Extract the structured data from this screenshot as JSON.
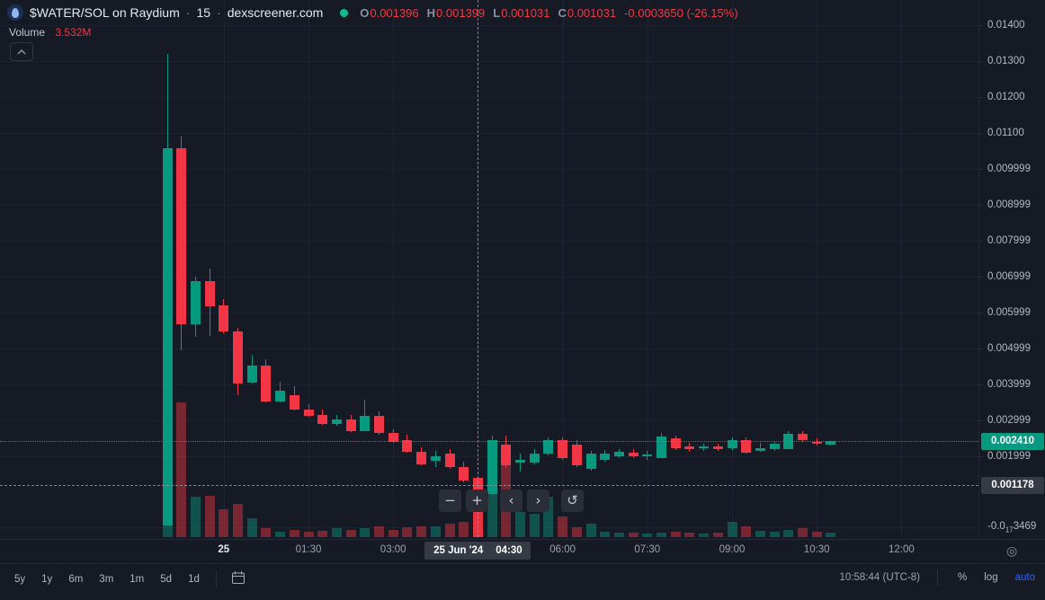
{
  "header": {
    "symbol": "$WATER/SOL on Raydium",
    "separator": "·",
    "interval": "15",
    "source": "dexscreener.com",
    "ohlc": {
      "o_label": "O",
      "o_value": "0.001396",
      "h_label": "H",
      "h_value": "0.001399",
      "l_label": "L",
      "l_value": "0.001031",
      "c_label": "C",
      "c_value": "0.001031",
      "change": "-0.0003650 (-26.15%)"
    },
    "volume_label": "Volume",
    "volume_value": "3.532M"
  },
  "chart_data": {
    "type": "candlestick+volume",
    "interval_minutes": 15,
    "hovered_candle_index": 22,
    "last_price": 0.00241,
    "crosshair_price": 0.001178,
    "ylim": [
      -0.000267,
      0.014706
    ],
    "grid": true,
    "candles": [
      [
        5.9e-05,
        0.013204,
        5.9e-05,
        0.010575,
        4.24
      ],
      [
        0.010575,
        0.0109,
        0.004941,
        0.005667,
        8.15
      ],
      [
        0.005667,
        0.006994,
        0.005317,
        0.006869,
        2.44
      ],
      [
        0.006869,
        0.007219,
        0.005342,
        0.006168,
        2.5
      ],
      [
        0.006193,
        0.006368,
        0.005417,
        0.005467,
        1.68
      ],
      [
        0.005467,
        0.005567,
        0.003689,
        0.004015,
        2.01
      ],
      [
        0.00404,
        0.004816,
        0.004015,
        0.004515,
        1.14
      ],
      [
        0.004515,
        0.004691,
        0.003489,
        0.003514,
        0.54
      ],
      [
        0.003514,
        0.004065,
        0.003489,
        0.003814,
        0.33
      ],
      [
        0.003689,
        0.003939,
        0.003263,
        0.003288,
        0.43
      ],
      [
        0.003288,
        0.003439,
        0.003088,
        0.003113,
        0.33
      ],
      [
        0.003138,
        0.003288,
        0.002863,
        0.002888,
        0.38
      ],
      [
        0.002888,
        0.003138,
        0.002838,
        0.003013,
        0.54
      ],
      [
        0.003013,
        0.003138,
        0.002663,
        0.002688,
        0.43
      ],
      [
        0.002688,
        0.003564,
        0.002688,
        0.003113,
        0.54
      ],
      [
        0.003113,
        0.003238,
        0.002587,
        0.002637,
        0.65
      ],
      [
        0.002637,
        0.002738,
        0.002362,
        0.002387,
        0.43
      ],
      [
        0.002437,
        0.002587,
        0.002087,
        0.002112,
        0.6
      ],
      [
        0.002112,
        0.002237,
        0.001737,
        0.001762,
        0.65
      ],
      [
        0.001862,
        0.002137,
        0.001687,
        0.001987,
        0.65
      ],
      [
        0.002062,
        0.002187,
        0.001637,
        0.001687,
        0.81
      ],
      [
        0.001687,
        0.001837,
        0.001262,
        0.001312,
        0.92
      ],
      [
        0.001396,
        0.001399,
        0.001031,
        0.001031,
        3.532
      ],
      [
        0.000936,
        0.002562,
        0.000911,
        0.002437,
        4.13
      ],
      [
        0.002312,
        0.002562,
        0.001687,
        0.001737,
        4.34
      ],
      [
        0.001812,
        0.002062,
        0.001562,
        0.001887,
        1.52
      ],
      [
        0.001812,
        0.002187,
        0.001762,
        0.002062,
        1.41
      ],
      [
        0.002062,
        0.002512,
        0.002012,
        0.002437,
        2.44
      ],
      [
        0.002437,
        0.002512,
        0.001887,
        0.001937,
        1.25
      ],
      [
        0.002312,
        0.002437,
        0.001687,
        0.001737,
        0.6
      ],
      [
        0.001637,
        0.002137,
        0.001587,
        0.002062,
        0.81
      ],
      [
        0.001887,
        0.002162,
        0.001837,
        0.002062,
        0.33
      ],
      [
        0.001987,
        0.002187,
        0.001937,
        0.002112,
        0.27
      ],
      [
        0.002087,
        0.002187,
        0.001937,
        0.001987,
        0.27
      ],
      [
        0.001987,
        0.002137,
        0.001887,
        0.002037,
        0.22
      ],
      [
        0.001937,
        0.002637,
        0.001937,
        0.002537,
        0.27
      ],
      [
        0.002487,
        0.002562,
        0.002162,
        0.002212,
        0.33
      ],
      [
        0.002262,
        0.002362,
        0.002112,
        0.002187,
        0.27
      ],
      [
        0.002212,
        0.002337,
        0.002137,
        0.002262,
        0.22
      ],
      [
        0.002262,
        0.002337,
        0.002137,
        0.002187,
        0.27
      ],
      [
        0.002212,
        0.002512,
        0.002162,
        0.002437,
        0.92
      ],
      [
        0.002437,
        0.002512,
        0.002062,
        0.002087,
        0.65
      ],
      [
        0.002137,
        0.002362,
        0.002112,
        0.002212,
        0.38
      ],
      [
        0.002187,
        0.002387,
        0.002137,
        0.002337,
        0.33
      ],
      [
        0.002187,
        0.002688,
        0.002187,
        0.002612,
        0.43
      ],
      [
        0.002612,
        0.002688,
        0.002387,
        0.002437,
        0.54
      ],
      [
        0.002387,
        0.002487,
        0.002287,
        0.002337,
        0.33
      ],
      [
        0.002312,
        0.002412,
        0.002287,
        0.00241,
        0.27
      ]
    ],
    "x_ticks": [
      {
        "label": "25",
        "index": 4,
        "bold": true
      },
      {
        "label": "01:30",
        "index": 10
      },
      {
        "label": "03:00",
        "index": 16
      },
      {
        "label": "06:00",
        "index": 28
      },
      {
        "label": "07:30",
        "index": 34
      },
      {
        "label": "09:00",
        "index": 40
      },
      {
        "label": "10:30",
        "index": 46
      },
      {
        "label": "12:00",
        "index": 52
      }
    ],
    "y_ticks": [
      {
        "label": "0.01400",
        "price": 0.014
      },
      {
        "label": "0.01300",
        "price": 0.013
      },
      {
        "label": "0.01200",
        "price": 0.012
      },
      {
        "label": "0.01100",
        "price": 0.011
      },
      {
        "label": "0.009999",
        "price": 0.009999
      },
      {
        "label": "0.008999",
        "price": 0.008999
      },
      {
        "label": "0.007999",
        "price": 0.007999
      },
      {
        "label": "0.006999",
        "price": 0.006999
      },
      {
        "label": "0.005999",
        "price": 0.005999
      },
      {
        "label": "0.004999",
        "price": 0.004999
      },
      {
        "label": "0.003999",
        "price": 0.003999
      },
      {
        "label": "0.002999",
        "price": 0.002999
      },
      {
        "label": "0.001999",
        "price": 0.001999
      }
    ],
    "zero_tick": {
      "prefix": "-0.0",
      "sub": "17",
      "digits": "3469",
      "price": 0
    }
  },
  "price_axis": {
    "last_price_badge": "0.002410",
    "crosshair_badge": "0.001178"
  },
  "time_axis": {
    "crosshair_date": "25 Jun '24",
    "crosshair_time": "04:30"
  },
  "controls": {
    "zoom_out": "−",
    "zoom_in": "+",
    "pan_left": "‹",
    "pan_right": "›",
    "reset": "↺"
  },
  "toolbar": {
    "ranges": [
      "5y",
      "1y",
      "6m",
      "3m",
      "1m",
      "5d",
      "1d"
    ],
    "clock": "10:58:44 (UTC-8)",
    "percent": "%",
    "log": "log",
    "auto": "auto"
  },
  "colors": {
    "up": "#089981",
    "down": "#f23645",
    "accent": "#2962ff",
    "badge_gray": "#363a45"
  }
}
